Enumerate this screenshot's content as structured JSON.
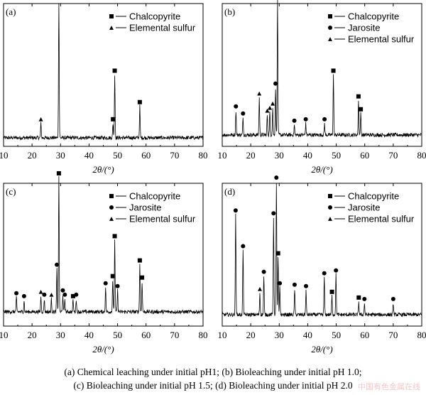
{
  "panels": [
    {
      "id": "a",
      "label": "(a)",
      "x_ticks": [
        "10",
        "20",
        "30",
        "40",
        "50",
        "60",
        "70",
        "80"
      ],
      "xlabel": "2θ/(°)",
      "legend": [
        {
          "marker": "square",
          "text": "Chalcopyrite"
        },
        {
          "marker": "triangle",
          "text": "Elemental sulfur"
        }
      ]
    },
    {
      "id": "b",
      "label": "(b)",
      "x_ticks": [
        "10",
        "20",
        "30",
        "40",
        "50",
        "60",
        "70",
        "80"
      ],
      "xlabel": "2θ/(°)",
      "legend": [
        {
          "marker": "square",
          "text": "Chalcopyrite"
        },
        {
          "marker": "circle",
          "text": "Jarosite"
        },
        {
          "marker": "triangle",
          "text": "Elemental sulfur"
        }
      ]
    },
    {
      "id": "c",
      "label": "(c)",
      "x_ticks": [
        "10",
        "20",
        "30",
        "40",
        "50",
        "60",
        "70",
        "80"
      ],
      "xlabel": "2θ/(°)",
      "legend": [
        {
          "marker": "square",
          "text": "Chalcopyrite"
        },
        {
          "marker": "circle",
          "text": "Jarosite"
        },
        {
          "marker": "triangle",
          "text": "Elemental sulfur"
        }
      ]
    },
    {
      "id": "d",
      "label": "(d)",
      "x_ticks": [
        "10",
        "20",
        "30",
        "40",
        "50",
        "60",
        "70",
        "80"
      ],
      "xlabel": "2θ/(°)",
      "legend": [
        {
          "marker": "square",
          "text": "Chalcopyrite"
        },
        {
          "marker": "circle",
          "text": "Jarosite"
        },
        {
          "marker": "triangle",
          "text": "Elemental sulfur"
        }
      ]
    }
  ],
  "caption_line1": "(a) Chemical leaching under initial pH1; (b) Bioleaching under initial pH 1.0;",
  "caption_line2": "(c) Bioleaching under initial pH 1.5; (d) Bioleaching under initial pH 2.0",
  "watermark": "中国有色金属在线",
  "chart_data": [
    {
      "type": "line",
      "panel": "a",
      "title": "",
      "xlabel": "2θ/(°)",
      "ylabel": "",
      "xlim": [
        10,
        80
      ],
      "ylim": [
        0,
        100
      ],
      "baseline": 6,
      "peaks": [
        {
          "x": 23.1,
          "h": 10,
          "phase": "Elemental sulfur"
        },
        {
          "x": 29.4,
          "h": 95,
          "phase": "Chalcopyrite"
        },
        {
          "x": 48.4,
          "h": 10,
          "phase": "Chalcopyrite"
        },
        {
          "x": 49.0,
          "h": 44,
          "phase": "Chalcopyrite"
        },
        {
          "x": 57.8,
          "h": 22,
          "phase": "Chalcopyrite"
        }
      ]
    },
    {
      "type": "line",
      "panel": "b",
      "title": "",
      "xlabel": "2θ/(°)",
      "ylabel": "",
      "xlim": [
        10,
        80
      ],
      "ylim": [
        0,
        100
      ],
      "baseline": 8,
      "peaks": [
        {
          "x": 14.8,
          "h": 17,
          "phase": "Jarosite"
        },
        {
          "x": 17.3,
          "h": 12,
          "phase": "Jarosite"
        },
        {
          "x": 23.0,
          "h": 26,
          "phase": "Elemental sulfur"
        },
        {
          "x": 25.8,
          "h": 14,
          "phase": "Elemental sulfur"
        },
        {
          "x": 26.7,
          "h": 16,
          "phase": "Elemental sulfur"
        },
        {
          "x": 27.7,
          "h": 19,
          "phase": "Elemental sulfur"
        },
        {
          "x": 28.7,
          "h": 33,
          "phase": "Jarosite"
        },
        {
          "x": 29.4,
          "h": 95,
          "phase": "Chalcopyrite"
        },
        {
          "x": 35.3,
          "h": 7,
          "phase": "Jarosite"
        },
        {
          "x": 39.3,
          "h": 8,
          "phase": "Jarosite"
        },
        {
          "x": 45.9,
          "h": 8,
          "phase": "Jarosite"
        },
        {
          "x": 49.0,
          "h": 42,
          "phase": "Chalcopyrite"
        },
        {
          "x": 57.8,
          "h": 24,
          "phase": "Chalcopyrite"
        },
        {
          "x": 58.6,
          "h": 15,
          "phase": "Chalcopyrite"
        }
      ]
    },
    {
      "type": "line",
      "panel": "c",
      "title": "",
      "xlabel": "2θ/(°)",
      "ylabel": "",
      "xlim": [
        10,
        80
      ],
      "ylim": [
        0,
        100
      ],
      "baseline": 10,
      "peaks": [
        {
          "x": 14.5,
          "h": 10,
          "phase": "Jarosite"
        },
        {
          "x": 17.2,
          "h": 8,
          "phase": "Jarosite"
        },
        {
          "x": 23.1,
          "h": 11,
          "phase": "Elemental sulfur"
        },
        {
          "x": 24.3,
          "h": 9,
          "phase": "Jarosite"
        },
        {
          "x": 26.8,
          "h": 9,
          "phase": "Elemental sulfur"
        },
        {
          "x": 28.7,
          "h": 30,
          "phase": "Jarosite"
        },
        {
          "x": 29.4,
          "h": 94,
          "phase": "Chalcopyrite"
        },
        {
          "x": 30.8,
          "h": 12,
          "phase": "Jarosite"
        },
        {
          "x": 31.5,
          "h": 9,
          "phase": "Jarosite"
        },
        {
          "x": 34.4,
          "h": 8,
          "phase": "Chalcopyrite"
        },
        {
          "x": 35.5,
          "h": 9,
          "phase": "Jarosite"
        },
        {
          "x": 45.8,
          "h": 17,
          "phase": "Jarosite"
        },
        {
          "x": 48.3,
          "h": 22,
          "phase": "Chalcopyrite"
        },
        {
          "x": 49.0,
          "h": 50,
          "phase": "Chalcopyrite"
        },
        {
          "x": 50.0,
          "h": 15,
          "phase": "Jarosite"
        },
        {
          "x": 57.8,
          "h": 33,
          "phase": "Chalcopyrite"
        },
        {
          "x": 58.6,
          "h": 21,
          "phase": "Chalcopyrite"
        }
      ]
    },
    {
      "type": "line",
      "panel": "d",
      "title": "",
      "xlabel": "2θ/(°)",
      "ylabel": "",
      "xlim": [
        10,
        80
      ],
      "ylim": [
        0,
        100
      ],
      "baseline": 8,
      "peaks": [
        {
          "x": 14.7,
          "h": 70,
          "phase": "Jarosite"
        },
        {
          "x": 17.3,
          "h": 45,
          "phase": "Jarosite"
        },
        {
          "x": 23.2,
          "h": 15,
          "phase": "Elemental sulfur"
        },
        {
          "x": 24.6,
          "h": 27,
          "phase": "Jarosite"
        },
        {
          "x": 28.0,
          "h": 68,
          "phase": "Jarosite"
        },
        {
          "x": 29.0,
          "h": 93,
          "phase": "Jarosite"
        },
        {
          "x": 29.6,
          "h": 40,
          "phase": "Chalcopyrite"
        },
        {
          "x": 30.2,
          "h": 19,
          "phase": "Jarosite"
        },
        {
          "x": 35.4,
          "h": 18,
          "phase": "Jarosite"
        },
        {
          "x": 39.4,
          "h": 17,
          "phase": "Jarosite"
        },
        {
          "x": 45.8,
          "h": 26,
          "phase": "Jarosite"
        },
        {
          "x": 48.5,
          "h": 13,
          "phase": "Chalcopyrite"
        },
        {
          "x": 49.9,
          "h": 28,
          "phase": "Jarosite"
        },
        {
          "x": 57.9,
          "h": 9,
          "phase": "Chalcopyrite"
        },
        {
          "x": 59.9,
          "h": 8,
          "phase": "Jarosite"
        },
        {
          "x": 70.0,
          "h": 8,
          "phase": "Jarosite"
        }
      ]
    }
  ]
}
